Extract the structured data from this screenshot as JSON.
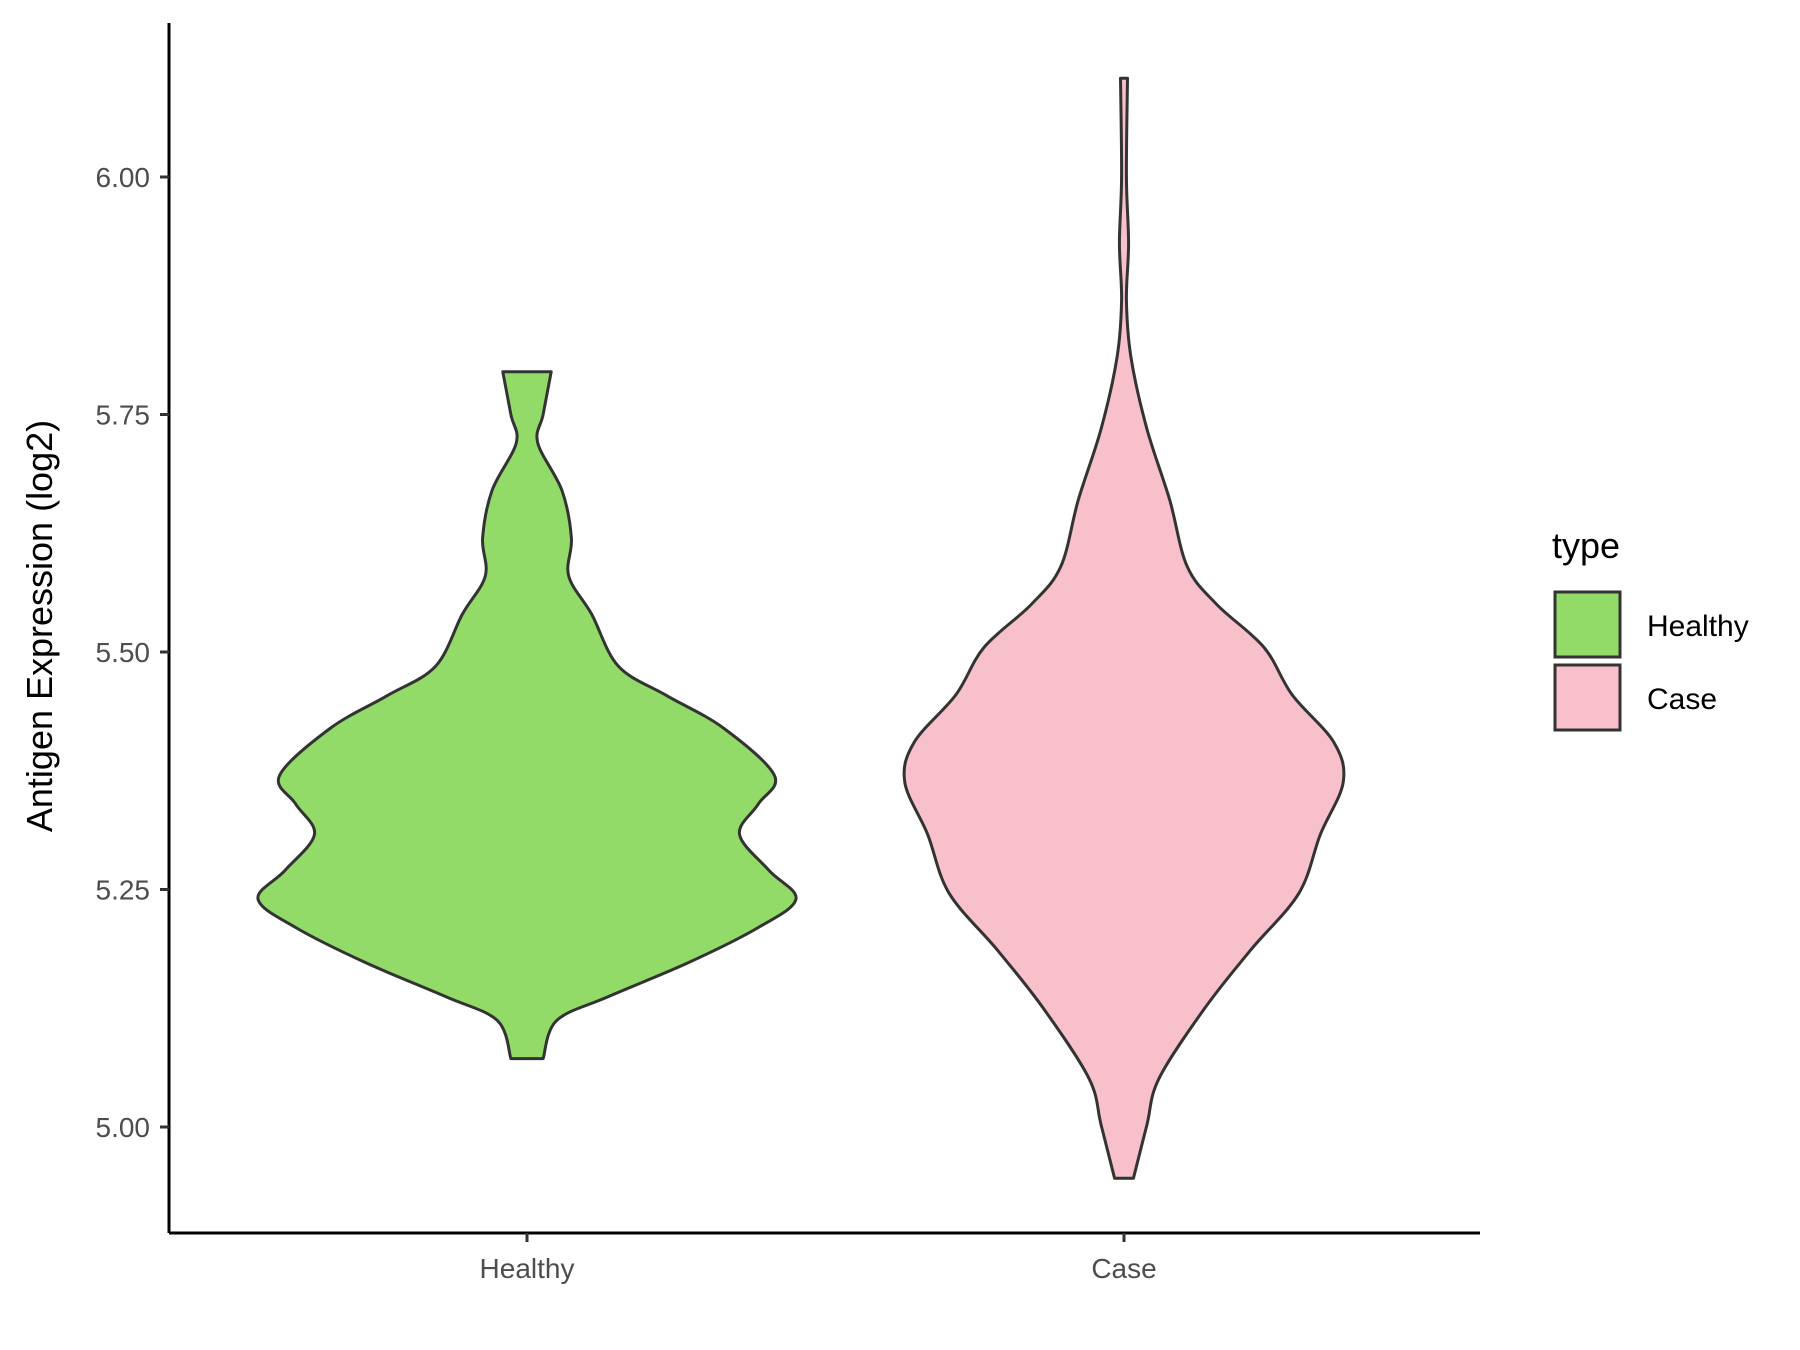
{
  "chart_data": {
    "type": "violin",
    "title": "",
    "xlabel": "",
    "ylabel": "Antigen Expression (log2)",
    "ylim": [
      4.89,
      6.17
    ],
    "yticks": [
      5.0,
      5.25,
      5.5,
      5.75,
      6.0
    ],
    "ytick_labels": [
      "5.00",
      "5.25",
      "5.50",
      "5.75",
      "6.00"
    ],
    "categories": [
      "Healthy",
      "Case"
    ],
    "grid": false,
    "legend": {
      "title": "type",
      "placement": "right",
      "entries": [
        "Healthy",
        "Case"
      ]
    },
    "series": [
      {
        "name": "Healthy",
        "color": "#93DB69",
        "density_profile": [
          [
            5.072,
            0.06
          ],
          [
            5.112,
            0.11
          ],
          [
            5.137,
            0.3
          ],
          [
            5.173,
            0.6
          ],
          [
            5.21,
            0.86
          ],
          [
            5.24,
            1.0
          ],
          [
            5.27,
            0.9
          ],
          [
            5.308,
            0.79
          ],
          [
            5.34,
            0.86
          ],
          [
            5.37,
            0.92
          ],
          [
            5.42,
            0.73
          ],
          [
            5.454,
            0.52
          ],
          [
            5.485,
            0.34
          ],
          [
            5.54,
            0.24
          ],
          [
            5.58,
            0.155
          ],
          [
            5.62,
            0.165
          ],
          [
            5.67,
            0.13
          ],
          [
            5.72,
            0.04
          ],
          [
            5.75,
            0.06
          ],
          [
            5.795,
            0.09
          ]
        ]
      },
      {
        "name": "Case",
        "color": "#F7C0CA",
        "density_profile": [
          [
            4.946,
            0.035
          ],
          [
            5.002,
            0.085
          ],
          [
            5.051,
            0.13
          ],
          [
            5.125,
            0.3
          ],
          [
            5.186,
            0.47
          ],
          [
            5.246,
            0.65
          ],
          [
            5.308,
            0.73
          ],
          [
            5.363,
            0.815
          ],
          [
            5.405,
            0.78
          ],
          [
            5.455,
            0.625
          ],
          [
            5.505,
            0.52
          ],
          [
            5.55,
            0.345
          ],
          [
            5.59,
            0.235
          ],
          [
            5.66,
            0.17
          ],
          [
            5.735,
            0.085
          ],
          [
            5.81,
            0.026
          ],
          [
            5.87,
            0.009
          ],
          [
            5.93,
            0.017
          ],
          [
            6.0,
            0.009
          ],
          [
            6.104,
            0.013
          ]
        ]
      }
    ]
  }
}
